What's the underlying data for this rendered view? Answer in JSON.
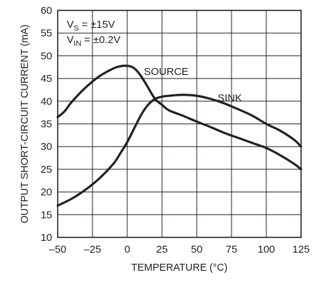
{
  "chart_data": {
    "type": "line",
    "xlabel": "TEMPERATURE (°C)",
    "ylabel": "OUTPUT SHORT-CIRCUIT CURRENT (mA)",
    "xlim": [
      -50,
      125
    ],
    "ylim": [
      10,
      60
    ],
    "grid": true,
    "x_ticks": [
      "–50",
      "–25",
      "0",
      "25",
      "50",
      "75",
      "100",
      "125"
    ],
    "y_ticks": [
      "10",
      "15",
      "20",
      "25",
      "30",
      "35",
      "40",
      "45",
      "50",
      "55",
      "60"
    ],
    "conditions": {
      "vs_main": "V",
      "vs_sub": "S",
      "vs_value": " = ±15V",
      "vin_main": "V",
      "vin_sub": "IN",
      "vin_value": " = ±0.2V"
    },
    "series": [
      {
        "name": "SOURCE",
        "x": [
          -50,
          -45,
          -40,
          -30,
          -20,
          -10,
          -5,
          0,
          3,
          6,
          10,
          15,
          20,
          25,
          30,
          40,
          50,
          60,
          70,
          80,
          90,
          100,
          110,
          120,
          125
        ],
        "y": [
          36.5,
          37.8,
          39.8,
          43.0,
          45.5,
          47.2,
          47.7,
          47.8,
          47.6,
          47.0,
          45.5,
          43.0,
          40.5,
          39.2,
          38.0,
          36.8,
          35.5,
          34.3,
          33.0,
          31.9,
          30.8,
          29.7,
          28.1,
          26.2,
          25.0
        ]
      },
      {
        "name": "SINK",
        "x": [
          -50,
          -40,
          -30,
          -20,
          -10,
          -5,
          0,
          5,
          10,
          15,
          20,
          25,
          30,
          40,
          50,
          60,
          70,
          80,
          90,
          100,
          110,
          120,
          125
        ],
        "y": [
          17.0,
          18.5,
          20.5,
          23.0,
          26.2,
          28.5,
          31.0,
          34.0,
          37.0,
          39.2,
          40.5,
          41.0,
          41.2,
          41.4,
          41.2,
          40.5,
          39.5,
          38.2,
          36.8,
          35.0,
          33.5,
          31.5,
          30.0
        ]
      }
    ]
  }
}
